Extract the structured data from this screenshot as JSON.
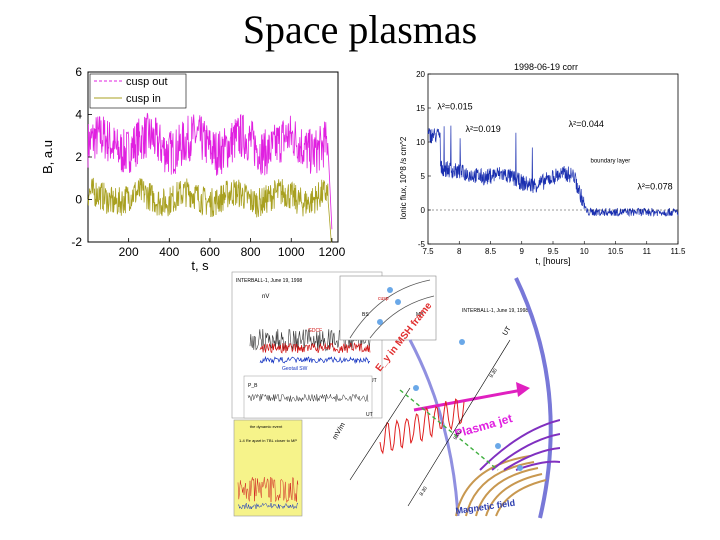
{
  "slide": {
    "title": "Space plasmas"
  },
  "chart_data": [
    {
      "type": "line",
      "xlabel": "t, s",
      "ylabel": "B, a.u",
      "xlim": [
        0,
        1230
      ],
      "ylim": [
        -2,
        6
      ],
      "xticks": [
        200,
        400,
        600,
        800,
        1000,
        1200
      ],
      "yticks": [
        -2,
        0,
        2,
        4,
        6
      ],
      "legend": "top-left",
      "series": [
        {
          "name": "cusp out",
          "color": "#e020e0",
          "mean": 2.6,
          "amplitude": 1.1,
          "range": [
            0,
            1200
          ]
        },
        {
          "name": "cusp in",
          "color": "#a8a020",
          "mean": 0.1,
          "amplitude": 0.7,
          "range": [
            0,
            1200
          ]
        }
      ]
    },
    {
      "type": "line",
      "title": "1998-06-19 corr",
      "xlabel": "t, [hours]",
      "ylabel": "Ionic flux, 10^8 /s cm^2",
      "xlim": [
        7.5,
        11.5
      ],
      "ylim": [
        -5,
        20
      ],
      "xticks": [
        7.5,
        8,
        8.5,
        9,
        9.5,
        10,
        10.5,
        11,
        11.5
      ],
      "yticks": [
        -5,
        0,
        5,
        10,
        15,
        20
      ],
      "series": [
        {
          "color": "#1a2fb0"
        }
      ],
      "annotations": [
        {
          "text": "λ²=0.015",
          "x": 7.65,
          "y": 14.8
        },
        {
          "text": "λ²=0.019",
          "x": 8.1,
          "y": 11.5
        },
        {
          "text": "λ²=0.044",
          "x": 9.75,
          "y": 12.2
        },
        {
          "text": "boundary layer",
          "x": 10.1,
          "y": 7.0
        },
        {
          "text": "λ²=0.078",
          "x": 10.85,
          "y": 3.0
        }
      ]
    }
  ],
  "composite": {
    "header_left": "INTERBALL-1, June 19, 1998",
    "header_right": "INTERBALL-1, June 19, 1998",
    "labels": {
      "nv": "nV",
      "cusp": "cusp",
      "bs": "BS",
      "mp": "MP",
      "geotail": "Geotail SW",
      "gdcf": "GDCF",
      "ut": "UT",
      "pb": "P_B",
      "ut2": "UT",
      "yellow1": "the dynamic event",
      "yellow2": "1-4 Re apart in TBL closer to MP",
      "msh_frame": "E_y in MSH frame",
      "plasma_jet": "Plasma jet",
      "magnetic_field": "Magnetic field",
      "mvm": "mV/m",
      "utr": "UT",
      "t1": "8.30",
      "t2": "9.00",
      "t3": "9.30"
    }
  }
}
